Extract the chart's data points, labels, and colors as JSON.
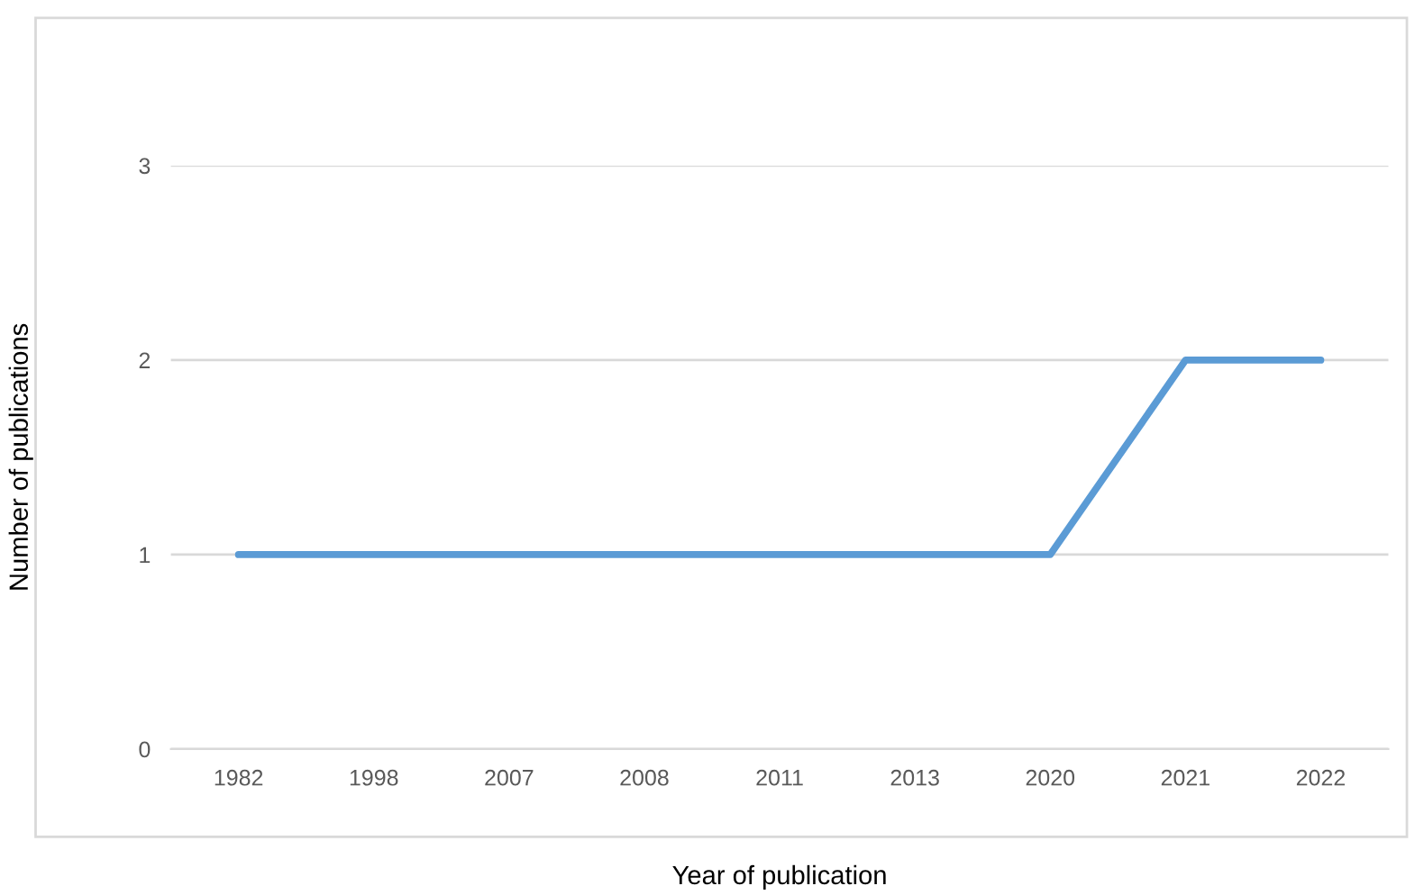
{
  "chart_data": {
    "type": "line",
    "xlabel": "Year of publication",
    "ylabel": "Number of publications",
    "categories": [
      "1982",
      "1998",
      "2007",
      "2008",
      "2011",
      "2013",
      "2020",
      "2021",
      "2022"
    ],
    "series": [
      {
        "color": "#5b9bd5",
        "values": [
          1,
          1,
          1,
          1,
          1,
          1,
          1,
          2,
          2
        ]
      }
    ],
    "ylim": [
      0,
      3
    ],
    "yticks": [
      0,
      1,
      2,
      3
    ],
    "grid": "y",
    "legend": false,
    "marker": "none",
    "line_style": "solid"
  }
}
